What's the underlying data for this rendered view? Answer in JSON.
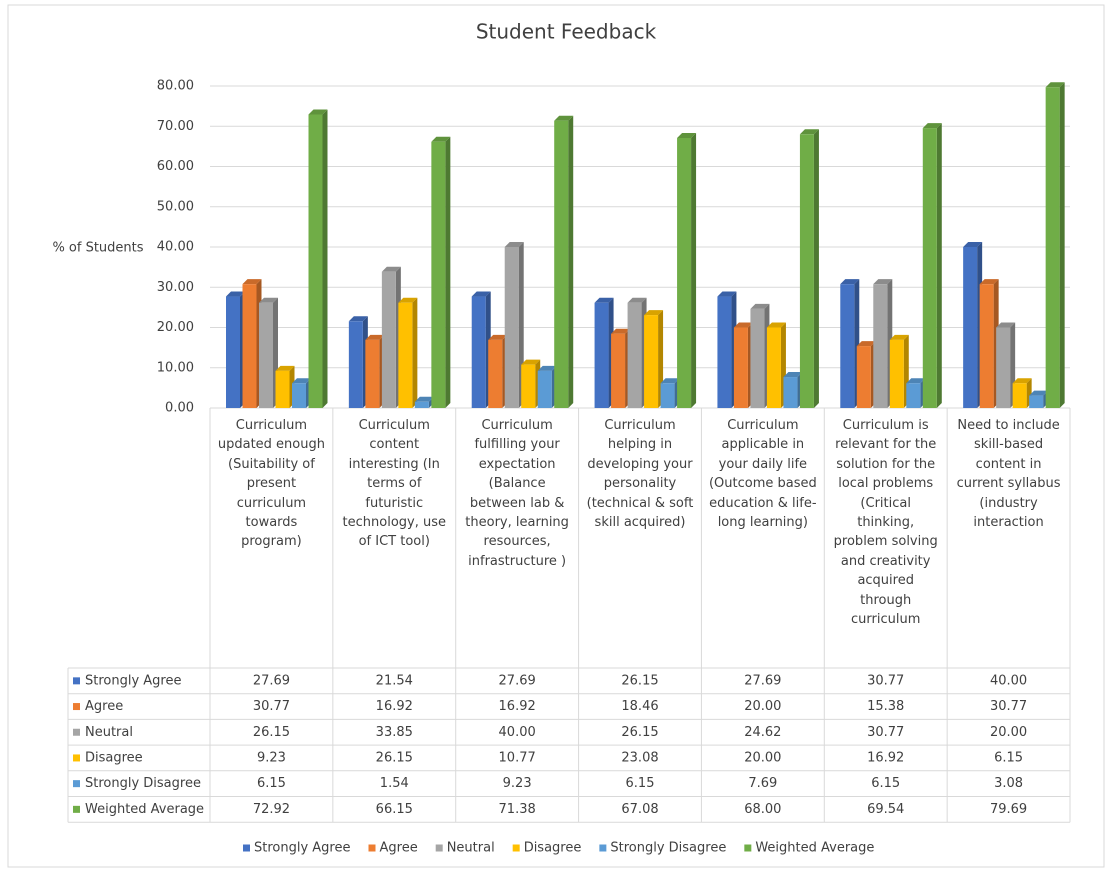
{
  "chart_data": {
    "type": "bar3d",
    "title": "Student Feedback",
    "y_label": "% of Students",
    "categories": [
      "Curriculum updated enough (Suitability of present curriculum towards program)",
      "Curriculum content interesting (In terms of futuristic technology, use of ICT tool)",
      "Curriculum fulfilling your expectation (Balance between lab & theory, learning resources, infrastructure )",
      "Curriculum helping in developing your personality (technical & soft skill acquired)",
      "Curriculum applicable in your daily life (Outcome based education & life-long learning)",
      "Curriculum is relevant for the solution for the local problems (Critical thinking, problem solving and creativity acquired through curriculum",
      "Need to include skill-based content in current syllabus (industry interaction"
    ],
    "series": [
      {
        "name": "Strongly Agree",
        "color": "#4472c4",
        "values": [
          27.69,
          21.54,
          27.69,
          26.15,
          27.69,
          30.77,
          40.0
        ],
        "value_labels": [
          "27.69",
          "21.54",
          "27.69",
          "26.15",
          "27.69",
          "30.77",
          "40.00"
        ]
      },
      {
        "name": "Agree",
        "color": "#ed7d31",
        "values": [
          30.77,
          16.92,
          16.92,
          18.46,
          20.0,
          15.38,
          30.77
        ],
        "value_labels": [
          "30.77",
          "16.92",
          "16.92",
          "18.46",
          "20.00",
          "15.38",
          "30.77"
        ]
      },
      {
        "name": "Neutral",
        "color": "#a5a5a5",
        "values": [
          26.15,
          33.85,
          40.0,
          26.15,
          24.62,
          30.77,
          20.0
        ],
        "value_labels": [
          "26.15",
          "33.85",
          "40.00",
          "26.15",
          "24.62",
          "30.77",
          "20.00"
        ]
      },
      {
        "name": "Disagree",
        "color": "#ffc000",
        "values": [
          9.23,
          26.15,
          10.77,
          23.08,
          20.0,
          16.92,
          6.15
        ],
        "value_labels": [
          "9.23",
          "26.15",
          "10.77",
          "23.08",
          "20.00",
          "16.92",
          "6.15"
        ]
      },
      {
        "name": "Strongly Disagree",
        "color": "#5b9bd5",
        "values": [
          6.15,
          1.54,
          9.23,
          6.15,
          7.69,
          6.15,
          3.08
        ],
        "value_labels": [
          "6.15",
          "1.54",
          "9.23",
          "6.15",
          "7.69",
          "6.15",
          "3.08"
        ]
      },
      {
        "name": "Weighted Average",
        "color": "#70ad47",
        "values": [
          72.92,
          66.15,
          71.38,
          67.08,
          68.0,
          69.54,
          79.69
        ],
        "value_labels": [
          "72.92",
          "66.15",
          "71.38",
          "67.08",
          "68.00",
          "69.54",
          "79.69"
        ]
      }
    ],
    "ylim": [
      0,
      80
    ],
    "yticks": [
      {
        "value": 0,
        "label": "0.00"
      },
      {
        "value": 10,
        "label": "10.00"
      },
      {
        "value": 20,
        "label": "20.00"
      },
      {
        "value": 30,
        "label": "30.00"
      },
      {
        "value": 40,
        "label": "40.00"
      },
      {
        "value": 50,
        "label": "50.00"
      },
      {
        "value": 60,
        "label": "60.00"
      },
      {
        "value": 70,
        "label": "70.00"
      },
      {
        "value": 80,
        "label": "80.00"
      }
    ],
    "grid": true,
    "legend": "bottom"
  }
}
